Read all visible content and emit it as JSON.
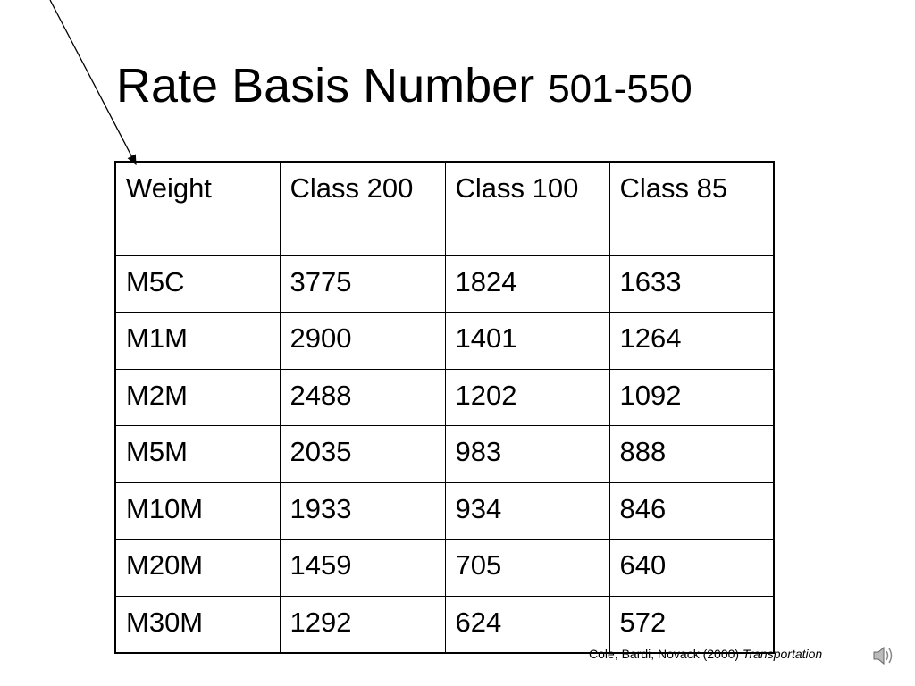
{
  "title": {
    "main": "Rate Basis Number",
    "range": "501-550"
  },
  "table": {
    "header": [
      "Weight",
      "Class 200",
      "Class 100",
      "Class 85"
    ],
    "rows": [
      [
        "M5C",
        "3775",
        "1824",
        "1633"
      ],
      [
        "M1M",
        "2900",
        "1401",
        "1264"
      ],
      [
        "M2M",
        "2488",
        "1202",
        "1092"
      ],
      [
        "M5M",
        "2035",
        "983",
        "888"
      ],
      [
        "M10M",
        "1933",
        "934",
        "846"
      ],
      [
        "M20M",
        "1459",
        "705",
        "640"
      ],
      [
        "M30M",
        "1292",
        "624",
        "572"
      ]
    ]
  },
  "citation": {
    "authors": "Cole, Bardi, Novack (2000)",
    "work": "Transportation"
  }
}
